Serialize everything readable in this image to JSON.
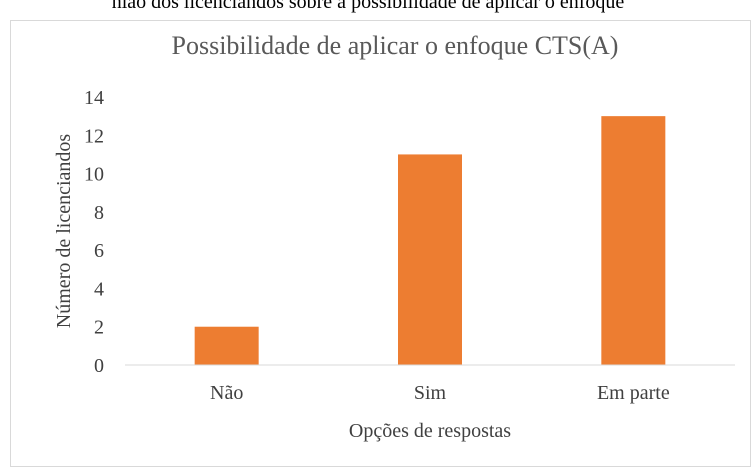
{
  "caption": "nião dos licenciandos sobre a possibilidade de aplicar o enfoque",
  "chart_data": {
    "type": "bar",
    "title": "Possibilidade de aplicar o enfoque CTS(A)",
    "x_label": "Opções de respostas",
    "y_label": "Número de licenciandos",
    "categories": [
      "Não",
      "Sim",
      "Em parte"
    ],
    "values": [
      2,
      11,
      13
    ],
    "color": "#ed7d31",
    "ylim": [
      0,
      14
    ],
    "yticks": [
      0,
      2,
      4,
      6,
      8,
      10,
      12,
      14
    ],
    "grid": false
  }
}
